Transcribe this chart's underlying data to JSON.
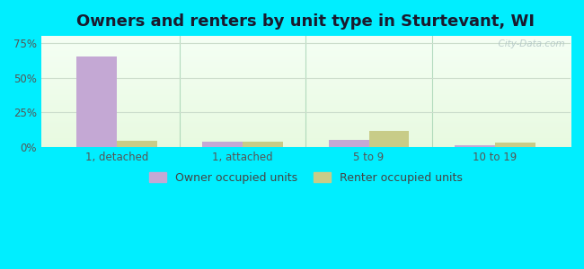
{
  "title": "Owners and renters by unit type in Sturtevant, WI",
  "categories": [
    "1, detached",
    "1, attached",
    "5 to 9",
    "10 to 19"
  ],
  "owner_values": [
    0.655,
    0.038,
    0.055,
    0.012
  ],
  "renter_values": [
    0.048,
    0.038,
    0.115,
    0.032
  ],
  "owner_color": "#c4a8d4",
  "renter_color": "#c8cc88",
  "ylim": [
    0,
    0.8
  ],
  "yticks": [
    0,
    0.25,
    0.5,
    0.75
  ],
  "ytick_labels": [
    "0%",
    "25%",
    "50%",
    "75%"
  ],
  "bar_width": 0.32,
  "fig_bg_color": "#00eeff",
  "watermark": "  City-Data.com",
  "legend_owner": "Owner occupied units",
  "legend_renter": "Renter occupied units",
  "title_fontsize": 13,
  "tick_fontsize": 8.5,
  "legend_fontsize": 9,
  "grid_color": "#ccddcc",
  "separator_color": "#99ccaa"
}
